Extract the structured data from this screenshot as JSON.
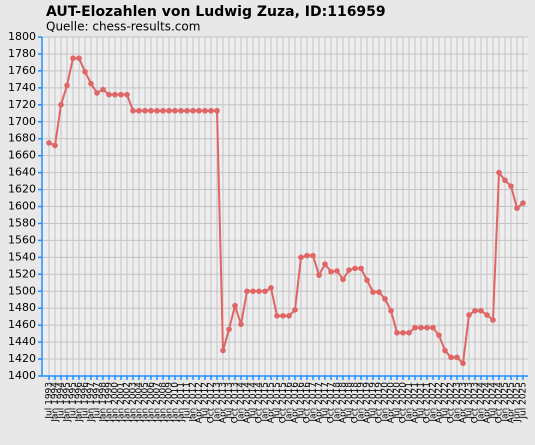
{
  "chart_data": {
    "type": "line",
    "title": "AUT-Elozahlen von Ludwig Zuza, ID:116959",
    "subtitle": "Quelle: chess-results.com",
    "color": "#e06666",
    "grid": true,
    "ylim": [
      1400,
      1800
    ],
    "yticks": [
      1400,
      1420,
      1440,
      1460,
      1480,
      1500,
      1520,
      1540,
      1560,
      1580,
      1600,
      1620,
      1640,
      1660,
      1680,
      1700,
      1720,
      1740,
      1760,
      1780,
      1800
    ],
    "categories": [
      "Jul 1993",
      "Jan 1994",
      "Jul 1994",
      "Jan 1995",
      "Jul 1995",
      "Jan 1996",
      "Jul 1996",
      "Jan 1997",
      "Jul 1997",
      "Jan 1998",
      "Jan 1999",
      "Jan 2000",
      "Jan 2001",
      "Jan 2002",
      "Jan 2003",
      "Jan 2004",
      "Jan 2005",
      "Jan 2006",
      "Jan 2007",
      "Jan 2008",
      "Jan 2009",
      "Jan 2010",
      "Jan 2011",
      "Jul 2011",
      "Jan 2012",
      "Apr 2012",
      "Jul 2012",
      "Oct 2012",
      "Jan 2013",
      "Apr 2013",
      "Jul 2013",
      "Oct 2013",
      "Jan 2014",
      "Apr 2014",
      "Jul 2014",
      "Oct 2014",
      "Jan 2015",
      "Apr 2015",
      "Jul 2015",
      "Oct 2015",
      "Jan 2016",
      "Apr 2016",
      "Jul 2016",
      "Oct 2016",
      "Jan 2017",
      "Apr 2017",
      "Jul 2017",
      "Oct 2017",
      "Jan 2018",
      "Apr 2018",
      "Jul 2018",
      "Oct 2018",
      "Jan 2019",
      "Apr 2019",
      "Jul 2019",
      "Oct 2019",
      "Jan 2020",
      "Apr 2020",
      "Jul 2020",
      "Oct 2020",
      "Jan 2021",
      "Apr 2021",
      "Jul 2021",
      "Oct 2021",
      "Jan 2022",
      "Apr 2022",
      "Jul 2022",
      "Oct 2022",
      "Jan 2023",
      "Apr 2023",
      "Jul 2023",
      "Oct 2023",
      "Jan 2024",
      "Apr 2024",
      "Jul 2024",
      "Oct 2024",
      "Jan 2025",
      "Apr 2025",
      "Jun 2025",
      "Jul 2025"
    ],
    "values": [
      1675,
      1672,
      1720,
      1743,
      1775,
      1775,
      1759,
      1745,
      1734,
      1738,
      1732,
      1732,
      1732,
      1732,
      1713,
      1713,
      1713,
      1713,
      1713,
      1713,
      1713,
      1713,
      1713,
      1713,
      1713,
      1713,
      1713,
      1713,
      1713,
      1430,
      1455,
      1483,
      1461,
      1500,
      1500,
      1500,
      1500,
      1504,
      1471,
      1471,
      1471,
      1478,
      1540,
      1542,
      1542,
      1519,
      1532,
      1523,
      1524,
      1514,
      1525,
      1527,
      1527,
      1513,
      1499,
      1499,
      1491,
      1477,
      1451,
      1451,
      1451,
      1457,
      1457,
      1457,
      1457,
      1448,
      1430,
      1422,
      1422,
      1415,
      1472,
      1477,
      1477,
      1472,
      1466,
      1640,
      1631,
      1624,
      1598,
      1604
    ]
  }
}
